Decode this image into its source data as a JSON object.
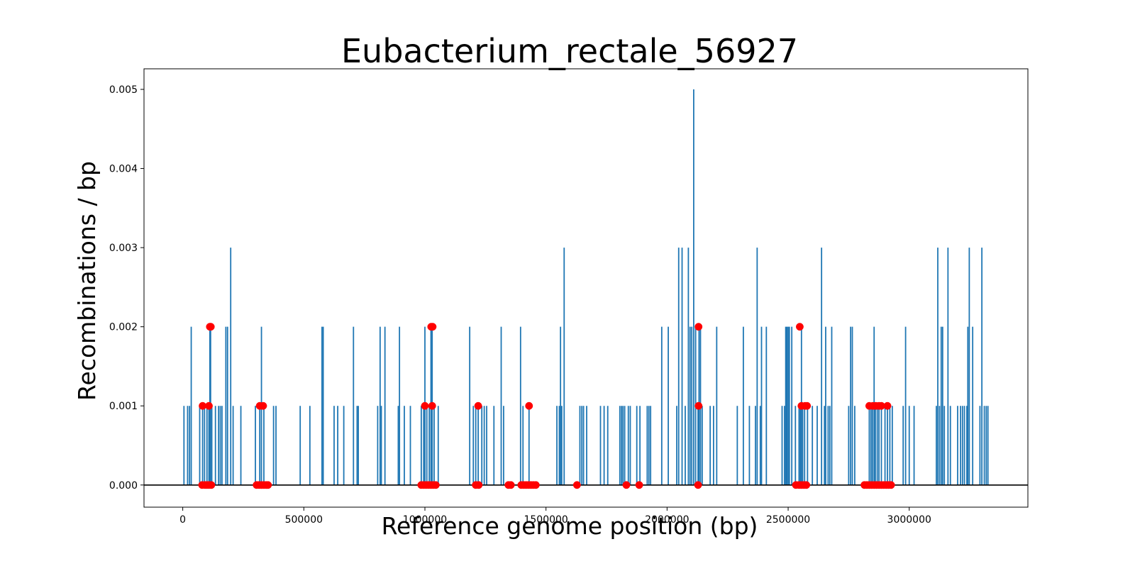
{
  "chart_data": {
    "type": "line",
    "title": "Eubacterium_rectale_56927",
    "xlabel": "Reference genome position (bp)",
    "ylabel": "Recombinations / bp",
    "xlim": [
      -160000,
      3490000
    ],
    "ylim": [
      -0.00028,
      0.00526
    ],
    "xticks": [
      0,
      500000,
      1000000,
      1500000,
      2000000,
      2500000,
      3000000
    ],
    "xtick_labels": [
      "0",
      "500000",
      "1000000",
      "1500000",
      "2000000",
      "2500000",
      "3000000"
    ],
    "yticks": [
      0.0,
      0.001,
      0.002,
      0.003,
      0.004,
      0.005
    ],
    "ytick_labels": [
      "0.000",
      "0.001",
      "0.002",
      "0.003",
      "0.004",
      "0.005"
    ],
    "grid": false,
    "zero_line": true,
    "series": [
      {
        "style": "vlines",
        "color": "#1f77b4",
        "x": [
          5000,
          20000,
          28000,
          35000,
          70000,
          82000,
          90000,
          100000,
          108000,
          112000,
          115000,
          120000,
          135000,
          148000,
          155000,
          162000,
          178000,
          185000,
          198000,
          208000,
          240000,
          300000,
          318000,
          325000,
          335000,
          375000,
          385000,
          485000,
          525000,
          575000,
          580000,
          625000,
          640000,
          665000,
          705000,
          720000,
          725000,
          805000,
          815000,
          820000,
          835000,
          890000,
          895000,
          915000,
          940000,
          985000,
          995000,
          1000000,
          1008000,
          1018000,
          1025000,
          1030000,
          1038000,
          1055000,
          1185000,
          1200000,
          1210000,
          1220000,
          1235000,
          1245000,
          1255000,
          1285000,
          1315000,
          1325000,
          1395000,
          1405000,
          1430000,
          1545000,
          1555000,
          1560000,
          1565000,
          1575000,
          1640000,
          1648000,
          1655000,
          1668000,
          1725000,
          1740000,
          1755000,
          1805000,
          1812000,
          1818000,
          1825000,
          1840000,
          1848000,
          1875000,
          1888000,
          1918000,
          1925000,
          1932000,
          1978000,
          2005000,
          2040000,
          2048000,
          2062000,
          2075000,
          2088000,
          2095000,
          2102000,
          2110000,
          2118000,
          2128000,
          2132000,
          2138000,
          2145000,
          2178000,
          2192000,
          2205000,
          2290000,
          2315000,
          2340000,
          2365000,
          2372000,
          2385000,
          2390000,
          2410000,
          2475000,
          2485000,
          2490000,
          2495000,
          2500000,
          2505000,
          2515000,
          2530000,
          2545000,
          2550000,
          2555000,
          2560000,
          2568000,
          2580000,
          2600000,
          2620000,
          2638000,
          2650000,
          2655000,
          2665000,
          2672000,
          2680000,
          2750000,
          2758000,
          2765000,
          2775000,
          2835000,
          2842000,
          2848000,
          2855000,
          2860000,
          2868000,
          2875000,
          2885000,
          2900000,
          2910000,
          2920000,
          2930000,
          2975000,
          2985000,
          3000000,
          3020000,
          3112000,
          3118000,
          3125000,
          3132000,
          3138000,
          3145000,
          3160000,
          3170000,
          3200000,
          3212000,
          3220000,
          3228000,
          3238000,
          3242000,
          3248000,
          3262000,
          3292000,
          3300000,
          3310000,
          3318000,
          3325000
        ],
        "values": [
          0.001,
          0.001,
          0.001,
          0.002,
          0.001,
          0.001,
          0.001,
          0.001,
          0.001,
          0.002,
          0.002,
          0.001,
          0.001,
          0.001,
          0.001,
          0.001,
          0.002,
          0.002,
          0.003,
          0.001,
          0.001,
          0.001,
          0.001,
          0.002,
          0.001,
          0.001,
          0.001,
          0.001,
          0.001,
          0.002,
          0.002,
          0.001,
          0.001,
          0.001,
          0.002,
          0.001,
          0.001,
          0.001,
          0.002,
          0.001,
          0.002,
          0.001,
          0.002,
          0.001,
          0.001,
          0.001,
          0.001,
          0.002,
          0.001,
          0.001,
          0.002,
          0.002,
          0.001,
          0.001,
          0.002,
          0.001,
          0.001,
          0.001,
          0.001,
          0.001,
          0.001,
          0.001,
          0.002,
          0.001,
          0.002,
          0.001,
          0.001,
          0.001,
          0.001,
          0.002,
          0.001,
          0.003,
          0.001,
          0.001,
          0.001,
          0.001,
          0.001,
          0.001,
          0.001,
          0.001,
          0.001,
          0.001,
          0.001,
          0.001,
          0.001,
          0.001,
          0.001,
          0.001,
          0.001,
          0.001,
          0.002,
          0.002,
          0.001,
          0.003,
          0.003,
          0.001,
          0.003,
          0.002,
          0.002,
          0.005,
          0.002,
          0.001,
          0.002,
          0.002,
          0.001,
          0.001,
          0.001,
          0.002,
          0.001,
          0.002,
          0.001,
          0.001,
          0.003,
          0.001,
          0.002,
          0.002,
          0.001,
          0.001,
          0.002,
          0.002,
          0.002,
          0.002,
          0.002,
          0.001,
          0.001,
          0.001,
          0.002,
          0.001,
          0.001,
          0.001,
          0.001,
          0.001,
          0.003,
          0.001,
          0.002,
          0.001,
          0.001,
          0.002,
          0.001,
          0.002,
          0.002,
          0.001,
          0.001,
          0.001,
          0.001,
          0.002,
          0.001,
          0.001,
          0.001,
          0.001,
          0.001,
          0.001,
          0.001,
          0.001,
          0.001,
          0.002,
          0.001,
          0.001,
          0.001,
          0.003,
          0.001,
          0.002,
          0.002,
          0.001,
          0.003,
          0.001,
          0.001,
          0.001,
          0.001,
          0.001,
          0.001,
          0.002,
          0.003,
          0.002,
          0.001,
          0.003,
          0.001,
          0.001,
          0.001
        ]
      },
      {
        "style": "markers",
        "color": "#ff0000",
        "points": [
          [
            82000,
            0.001
          ],
          [
            112000,
            0.002
          ],
          [
            116000,
            0.002
          ],
          [
            108000,
            0.001
          ],
          [
            318000,
            0.001
          ],
          [
            332000,
            0.001
          ],
          [
            1000000,
            0.001
          ],
          [
            1026000,
            0.002
          ],
          [
            1032000,
            0.002
          ],
          [
            1030000,
            0.001
          ],
          [
            1220000,
            0.001
          ],
          [
            1430000,
            0.001
          ],
          [
            2130000,
            0.002
          ],
          [
            2130000,
            0.001
          ],
          [
            2548000,
            0.002
          ],
          [
            2555000,
            0.001
          ],
          [
            2570000,
            0.001
          ],
          [
            2578000,
            0.001
          ],
          [
            2835000,
            0.001
          ],
          [
            2850000,
            0.001
          ],
          [
            2862000,
            0.001
          ],
          [
            2875000,
            0.001
          ],
          [
            2885000,
            0.001
          ],
          [
            2910000,
            0.001
          ],
          [
            80000,
            0.0
          ],
          [
            92000,
            0.0
          ],
          [
            100000,
            0.0
          ],
          [
            108000,
            0.0
          ],
          [
            118000,
            0.0
          ],
          [
            305000,
            0.0
          ],
          [
            315000,
            0.0
          ],
          [
            325000,
            0.0
          ],
          [
            335000,
            0.0
          ],
          [
            345000,
            0.0
          ],
          [
            352000,
            0.0
          ],
          [
            985000,
            0.0
          ],
          [
            995000,
            0.0
          ],
          [
            1005000,
            0.0
          ],
          [
            1015000,
            0.0
          ],
          [
            1025000,
            0.0
          ],
          [
            1035000,
            0.0
          ],
          [
            1045000,
            0.0
          ],
          [
            1210000,
            0.0
          ],
          [
            1222000,
            0.0
          ],
          [
            1345000,
            0.0
          ],
          [
            1355000,
            0.0
          ],
          [
            1398000,
            0.0
          ],
          [
            1408000,
            0.0
          ],
          [
            1418000,
            0.0
          ],
          [
            1428000,
            0.0
          ],
          [
            1438000,
            0.0
          ],
          [
            1448000,
            0.0
          ],
          [
            1458000,
            0.0
          ],
          [
            1628000,
            0.0
          ],
          [
            1832000,
            0.0
          ],
          [
            1885000,
            0.0
          ],
          [
            2128000,
            0.0
          ],
          [
            2532000,
            0.0
          ],
          [
            2545000,
            0.0
          ],
          [
            2555000,
            0.0
          ],
          [
            2565000,
            0.0
          ],
          [
            2575000,
            0.0
          ],
          [
            2815000,
            0.0
          ],
          [
            2825000,
            0.0
          ],
          [
            2835000,
            0.0
          ],
          [
            2845000,
            0.0
          ],
          [
            2855000,
            0.0
          ],
          [
            2865000,
            0.0
          ],
          [
            2875000,
            0.0
          ],
          [
            2885000,
            0.0
          ],
          [
            2895000,
            0.0
          ],
          [
            2905000,
            0.0
          ],
          [
            2915000,
            0.0
          ],
          [
            2925000,
            0.0
          ]
        ]
      }
    ]
  }
}
